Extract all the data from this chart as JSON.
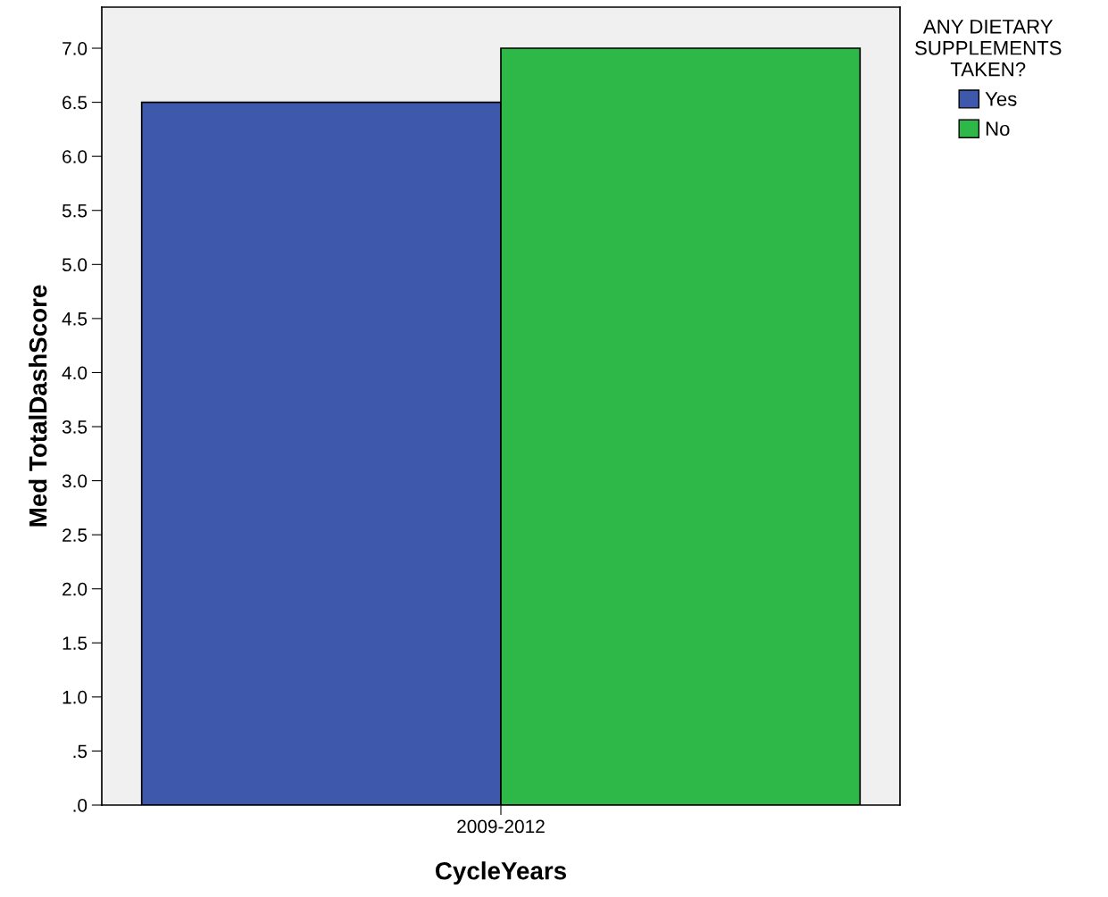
{
  "chart_data": {
    "type": "bar",
    "xlabel": "CycleYears",
    "ylabel": "Med TotalDashScore",
    "legend_title": "ANY DIETARY\nSUPPLEMENTS\nTAKEN?",
    "categories": [
      "2009-2012"
    ],
    "series": [
      {
        "name": "Yes",
        "color": "#3e58ac",
        "values": [
          6.5
        ]
      },
      {
        "name": "No",
        "color": "#2eb848",
        "values": [
          7.0
        ]
      }
    ],
    "ylim": [
      0,
      7.38
    ],
    "yticks": [
      {
        "value": 0,
        "label": ".0"
      },
      {
        "value": 0.5,
        "label": ".5"
      },
      {
        "value": 1.0,
        "label": "1.0"
      },
      {
        "value": 1.5,
        "label": "1.5"
      },
      {
        "value": 2.0,
        "label": "2.0"
      },
      {
        "value": 2.5,
        "label": "2.5"
      },
      {
        "value": 3.0,
        "label": "3.0"
      },
      {
        "value": 3.5,
        "label": "3.5"
      },
      {
        "value": 4.0,
        "label": "4.0"
      },
      {
        "value": 4.5,
        "label": "4.5"
      },
      {
        "value": 5.0,
        "label": "5.0"
      },
      {
        "value": 5.5,
        "label": "5.5"
      },
      {
        "value": 6.0,
        "label": "6.0"
      },
      {
        "value": 6.5,
        "label": "6.5"
      },
      {
        "value": 7.0,
        "label": "7.0"
      }
    ],
    "grid": false,
    "legend": "top right"
  }
}
